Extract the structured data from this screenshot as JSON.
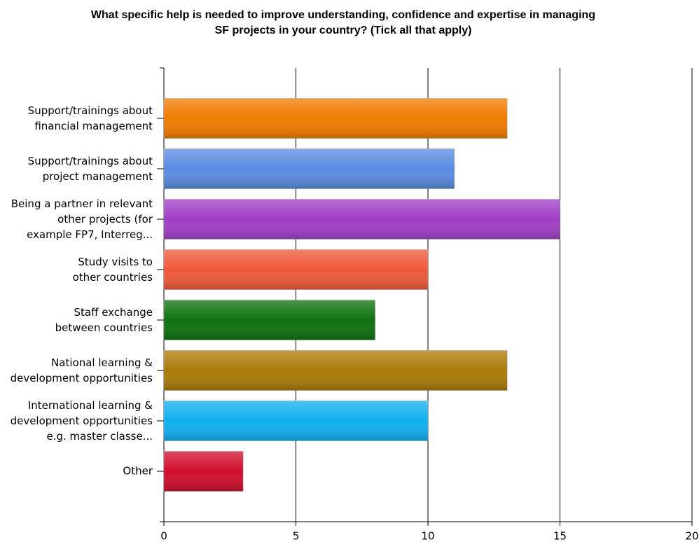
{
  "chart_data": {
    "type": "bar",
    "orientation": "horizontal",
    "title": "What specific help is needed to improve understanding, confidence and expertise in managing\nSF projects in your country? (Tick all that apply)",
    "categories": [
      "Support/trainings about\nfinancial management",
      "Support/trainings about\nproject management",
      "Being a partner in relevant\nother projects (for\nexample FP7, Interreg...",
      "Study visits to\nother countries",
      "Staff exchange\nbetween countries",
      "National learning &\ndevelopment opportunities",
      "International learning &\ndevelopment opportunities\ne.g. master classe...",
      "Other"
    ],
    "values": [
      13,
      11,
      15,
      10,
      8,
      13,
      10,
      3
    ],
    "colors": [
      "#f07c00",
      "#5a8be2",
      "#a03ec6",
      "#f0583a",
      "#0e720e",
      "#a97a08",
      "#0fb0f0",
      "#d00e2e"
    ],
    "xlim": [
      0,
      20
    ],
    "xticks": [
      0,
      5,
      10,
      15,
      20
    ],
    "grid": true
  }
}
